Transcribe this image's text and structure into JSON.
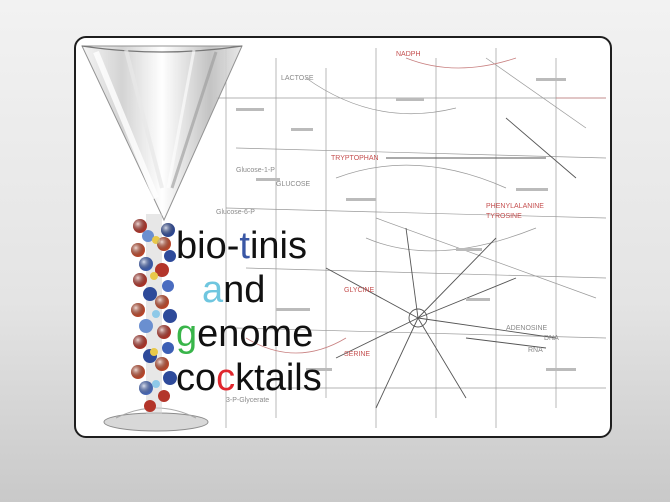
{
  "title": {
    "line1": {
      "a": "bio-",
      "b": "t",
      "c": "inis"
    },
    "line2": {
      "a": "a",
      "b": "nd"
    },
    "line3": {
      "a": "g",
      "b": "enome"
    },
    "line4": {
      "a": "co",
      "b": "c",
      "c": "ktails"
    }
  },
  "map_labels": [
    "Glucose-1-P",
    "GLUCOSE",
    "Glucose-6-P",
    "TRYPTOPHAN",
    "PHENYLALANINE",
    "TYROSINE",
    "GLYCINE",
    "SERINE",
    "ADENOSINE",
    "DNA",
    "RNA",
    "NADPH",
    "LACTOSE",
    "3-P-Glycerate"
  ],
  "colors": {
    "blue": "#3a57a5",
    "cyan": "#6fc6df",
    "green": "#39b54a",
    "red": "#e0262d"
  }
}
